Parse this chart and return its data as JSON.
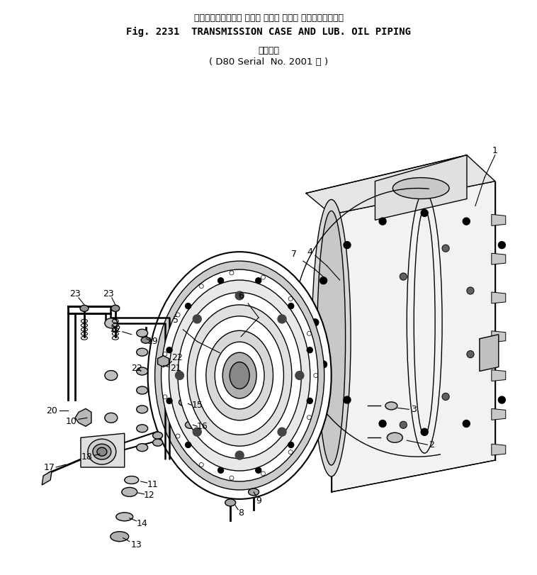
{
  "title_jp": "トランスミッション ケース および ループ オイルパイピング",
  "title_en": "Fig. 2231  TRANSMISSION CASE AND LUB. OIL PIPING",
  "subtitle_jp": "適用号機",
  "subtitle_en": "( D80 Serial  No. 2001 ～ )",
  "bg_color": "#ffffff",
  "line_color": "#000000"
}
